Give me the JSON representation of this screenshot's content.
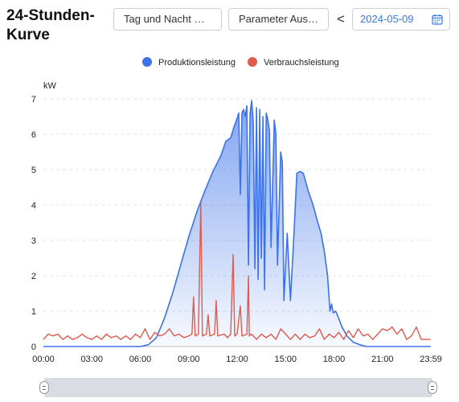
{
  "header": {
    "title": "24-Stunden-Kurve",
    "mode_button": "Tag und Nacht Mod...",
    "params_button": "Parameter Auswahl",
    "prev_arrow": "<",
    "date": "2024-05-09",
    "date_icon": "calendar-icon"
  },
  "colors": {
    "production": "#3d73e8",
    "consumption": "#e05a4e",
    "grid": "#e3e3e3",
    "slider": "#d9dde3"
  },
  "chart_data": {
    "type": "area",
    "title": "",
    "xlabel": "",
    "ylabel": "kW",
    "ylim": [
      0,
      7
    ],
    "yticks": [
      "0",
      "1",
      "2",
      "3",
      "4",
      "5",
      "6",
      "7"
    ],
    "xticks": [
      "00:00",
      "03:00",
      "06:00",
      "09:00",
      "12:00",
      "15:00",
      "18:00",
      "21:00",
      "23:59"
    ],
    "xtick_hours": [
      0,
      3,
      6,
      9,
      12,
      15,
      18,
      21,
      24
    ],
    "legend_position": "top",
    "series": [
      {
        "name": "Produktionsleistung",
        "fill": true,
        "points": [
          [
            0,
            0
          ],
          [
            6,
            0
          ],
          [
            6.5,
            0.05
          ],
          [
            7,
            0.25
          ],
          [
            7.5,
            0.8
          ],
          [
            8,
            1.5
          ],
          [
            8.5,
            2.3
          ],
          [
            9,
            3.1
          ],
          [
            9.5,
            3.8
          ],
          [
            10,
            4.4
          ],
          [
            10.5,
            4.95
          ],
          [
            11,
            5.4
          ],
          [
            11.3,
            5.8
          ],
          [
            11.6,
            5.9
          ],
          [
            11.8,
            6.2
          ],
          [
            12,
            6.45
          ],
          [
            12.1,
            6.6
          ],
          [
            12.2,
            4.3
          ],
          [
            12.3,
            6.6
          ],
          [
            12.4,
            6.7
          ],
          [
            12.5,
            6.5
          ],
          [
            12.6,
            6.8
          ],
          [
            12.7,
            2.3
          ],
          [
            12.8,
            6.6
          ],
          [
            12.9,
            6.95
          ],
          [
            13.0,
            6.3
          ],
          [
            13.1,
            2.2
          ],
          [
            13.2,
            6.75
          ],
          [
            13.3,
            1.9
          ],
          [
            13.4,
            6.7
          ],
          [
            13.5,
            2.5
          ],
          [
            13.6,
            6.5
          ],
          [
            13.7,
            1.6
          ],
          [
            13.8,
            6.6
          ],
          [
            13.9,
            6.4
          ],
          [
            14.0,
            6.1
          ],
          [
            14.1,
            2.8
          ],
          [
            14.3,
            6.4
          ],
          [
            14.4,
            6.0
          ],
          [
            14.5,
            2.3
          ],
          [
            14.7,
            5.5
          ],
          [
            14.8,
            5.2
          ],
          [
            14.9,
            1.3
          ],
          [
            15.1,
            3.2
          ],
          [
            15.3,
            1.3
          ],
          [
            15.5,
            3.0
          ],
          [
            15.7,
            4.9
          ],
          [
            15.9,
            4.95
          ],
          [
            16.1,
            4.9
          ],
          [
            16.4,
            4.4
          ],
          [
            16.7,
            4.0
          ],
          [
            17.0,
            3.5
          ],
          [
            17.2,
            3.2
          ],
          [
            17.4,
            2.7
          ],
          [
            17.6,
            2.0
          ],
          [
            17.75,
            1.0
          ],
          [
            17.85,
            1.2
          ],
          [
            17.95,
            0.95
          ],
          [
            18.1,
            1.0
          ],
          [
            18.2,
            0.9
          ],
          [
            18.5,
            0.55
          ],
          [
            18.8,
            0.3
          ],
          [
            19.2,
            0.12
          ],
          [
            19.6,
            0.05
          ],
          [
            20,
            0
          ],
          [
            23.98,
            0
          ]
        ]
      },
      {
        "name": "Verbrauchsleistung",
        "fill": false,
        "points": [
          [
            0,
            0.2
          ],
          [
            0.3,
            0.35
          ],
          [
            0.6,
            0.3
          ],
          [
            0.9,
            0.35
          ],
          [
            1.2,
            0.2
          ],
          [
            1.5,
            0.3
          ],
          [
            1.8,
            0.2
          ],
          [
            2.1,
            0.25
          ],
          [
            2.4,
            0.35
          ],
          [
            2.7,
            0.25
          ],
          [
            3.0,
            0.2
          ],
          [
            3.3,
            0.3
          ],
          [
            3.6,
            0.2
          ],
          [
            3.9,
            0.35
          ],
          [
            4.2,
            0.25
          ],
          [
            4.5,
            0.3
          ],
          [
            4.8,
            0.2
          ],
          [
            5.1,
            0.3
          ],
          [
            5.4,
            0.2
          ],
          [
            5.7,
            0.35
          ],
          [
            6.0,
            0.25
          ],
          [
            6.3,
            0.5
          ],
          [
            6.6,
            0.2
          ],
          [
            6.9,
            0.4
          ],
          [
            7.2,
            0.3
          ],
          [
            7.5,
            0.35
          ],
          [
            7.8,
            0.5
          ],
          [
            8.1,
            0.3
          ],
          [
            8.4,
            0.35
          ],
          [
            8.7,
            0.25
          ],
          [
            9.0,
            0.3
          ],
          [
            9.2,
            0.35
          ],
          [
            9.3,
            1.4
          ],
          [
            9.4,
            0.3
          ],
          [
            9.6,
            0.35
          ],
          [
            9.75,
            4.05
          ],
          [
            9.85,
            0.3
          ],
          [
            10.1,
            0.35
          ],
          [
            10.2,
            0.9
          ],
          [
            10.3,
            0.3
          ],
          [
            10.6,
            0.35
          ],
          [
            10.7,
            1.3
          ],
          [
            10.8,
            0.3
          ],
          [
            11.2,
            0.35
          ],
          [
            11.4,
            0.25
          ],
          [
            11.6,
            0.35
          ],
          [
            11.75,
            2.6
          ],
          [
            11.85,
            0.3
          ],
          [
            12.0,
            0.35
          ],
          [
            12.2,
            1.15
          ],
          [
            12.3,
            0.3
          ],
          [
            12.6,
            0.35
          ],
          [
            12.7,
            2.0
          ],
          [
            12.75,
            0.3
          ],
          [
            12.9,
            0.35
          ],
          [
            13.2,
            0.2
          ],
          [
            13.5,
            0.35
          ],
          [
            13.8,
            0.25
          ],
          [
            14.1,
            0.35
          ],
          [
            14.4,
            0.2
          ],
          [
            14.7,
            0.5
          ],
          [
            15.0,
            0.35
          ],
          [
            15.3,
            0.2
          ],
          [
            15.6,
            0.35
          ],
          [
            15.9,
            0.2
          ],
          [
            16.2,
            0.35
          ],
          [
            16.5,
            0.25
          ],
          [
            16.8,
            0.3
          ],
          [
            17.1,
            0.5
          ],
          [
            17.4,
            0.2
          ],
          [
            17.7,
            0.35
          ],
          [
            18.0,
            0.25
          ],
          [
            18.3,
            0.4
          ],
          [
            18.6,
            0.2
          ],
          [
            18.9,
            0.45
          ],
          [
            19.2,
            0.25
          ],
          [
            19.5,
            0.5
          ],
          [
            19.8,
            0.3
          ],
          [
            20.1,
            0.35
          ],
          [
            20.4,
            0.2
          ],
          [
            20.7,
            0.35
          ],
          [
            21.0,
            0.5
          ],
          [
            21.3,
            0.45
          ],
          [
            21.6,
            0.55
          ],
          [
            21.9,
            0.35
          ],
          [
            22.2,
            0.5
          ],
          [
            22.5,
            0.2
          ],
          [
            22.8,
            0.3
          ],
          [
            23.1,
            0.55
          ],
          [
            23.4,
            0.2
          ],
          [
            23.7,
            0.2
          ],
          [
            23.98,
            0.2
          ]
        ]
      }
    ]
  }
}
